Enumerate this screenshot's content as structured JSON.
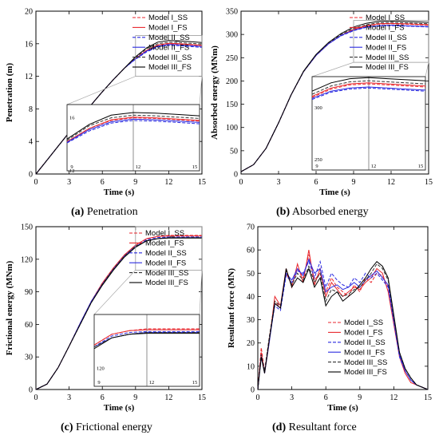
{
  "legend_labels": [
    "Model I_SS",
    "Model I_FS",
    "Model II_SS",
    "Model II_FS",
    "Model III_SS",
    "Model III_FS"
  ],
  "series_styles": [
    {
      "color": "#e8262c",
      "dash": true
    },
    {
      "color": "#e8262c",
      "dash": false
    },
    {
      "color": "#2a2ae0",
      "dash": true
    },
    {
      "color": "#2a2ae0",
      "dash": false
    },
    {
      "color": "#333333",
      "dash": true
    },
    {
      "color": "#000000",
      "dash": false
    }
  ],
  "captions": [
    {
      "letter": "(a)",
      "text": " Penetration"
    },
    {
      "letter": "(b)",
      "text": " Absorbed energy"
    },
    {
      "letter": "(c)",
      "text": " Frictional energy"
    },
    {
      "letter": "(d)",
      "text": " Resultant force"
    }
  ],
  "chart_data": [
    {
      "type": "line",
      "xlabel": "Time (s)",
      "ylabel": "Penetration (m)",
      "xlim": [
        0,
        15
      ],
      "ylim": [
        0,
        20
      ],
      "xticks": [
        0,
        3,
        6,
        9,
        12,
        15
      ],
      "yticks": [
        0,
        4,
        8,
        12,
        16,
        20
      ],
      "legend_position": "top-right",
      "x": [
        0,
        1,
        2,
        3,
        4,
        5,
        6,
        7,
        8,
        9,
        10,
        11,
        12,
        13,
        14,
        15
      ],
      "series": [
        {
          "name": "Model I_SS",
          "values": [
            0,
            1.7,
            3.4,
            5.1,
            6.8,
            8.5,
            10.1,
            11.6,
            13.0,
            14.2,
            15.2,
            15.8,
            16.0,
            15.95,
            15.85,
            15.75
          ]
        },
        {
          "name": "Model I_FS",
          "values": [
            0,
            1.7,
            3.4,
            5.1,
            6.8,
            8.5,
            10.1,
            11.6,
            13.0,
            14.2,
            15.2,
            15.85,
            16.05,
            16.0,
            15.9,
            15.8
          ]
        },
        {
          "name": "Model II_SS",
          "values": [
            0,
            1.7,
            3.4,
            5.1,
            6.8,
            8.5,
            10.1,
            11.6,
            13.0,
            14.1,
            15.0,
            15.6,
            15.8,
            15.75,
            15.65,
            15.55
          ]
        },
        {
          "name": "Model II_FS",
          "values": [
            0,
            1.7,
            3.4,
            5.1,
            6.8,
            8.5,
            10.1,
            11.6,
            13.0,
            14.15,
            15.1,
            15.7,
            15.9,
            15.85,
            15.75,
            15.65
          ]
        },
        {
          "name": "Model III_SS",
          "values": [
            0,
            1.7,
            3.4,
            5.1,
            6.8,
            8.5,
            10.1,
            11.6,
            13.0,
            14.3,
            15.4,
            16.0,
            16.2,
            16.15,
            16.05,
            15.95
          ]
        },
        {
          "name": "Model III_FS",
          "values": [
            0,
            1.7,
            3.4,
            5.1,
            6.8,
            8.5,
            10.1,
            11.6,
            13.0,
            14.4,
            15.5,
            16.2,
            16.4,
            16.35,
            16.25,
            16.15
          ]
        }
      ],
      "inset": {
        "xlim": [
          9,
          15
        ],
        "ylim": [
          12,
          17
        ],
        "xticks": [
          9,
          12,
          15
        ],
        "ytick_labels": [
          "12",
          "16"
        ]
      }
    },
    {
      "type": "line",
      "xlabel": "Time (s)",
      "ylabel": "Absorbed energy (MNm)",
      "xlim": [
        0,
        15
      ],
      "ylim": [
        0,
        350
      ],
      "xticks": [
        0,
        3,
        6,
        9,
        12,
        15
      ],
      "yticks": [
        0,
        50,
        100,
        150,
        200,
        250,
        300,
        350
      ],
      "legend_position": "top-right",
      "x": [
        0,
        1,
        2,
        3,
        4,
        5,
        6,
        7,
        8,
        9,
        10,
        11,
        12,
        13,
        14,
        15
      ],
      "series": [
        {
          "name": "Model I_SS",
          "values": [
            5,
            20,
            55,
            110,
            170,
            220,
            255,
            280,
            298,
            310,
            318,
            322,
            323,
            322,
            321,
            320
          ]
        },
        {
          "name": "Model I_FS",
          "values": [
            5,
            20,
            55,
            110,
            170,
            220,
            255,
            280,
            298,
            311,
            319,
            323,
            324,
            323,
            322,
            321
          ]
        },
        {
          "name": "Model II_SS",
          "values": [
            5,
            20,
            55,
            110,
            170,
            220,
            255,
            280,
            297,
            308,
            315,
            318,
            319,
            318,
            317,
            316
          ]
        },
        {
          "name": "Model II_FS",
          "values": [
            5,
            20,
            55,
            110,
            170,
            220,
            255,
            280,
            298,
            309,
            316,
            319,
            320,
            319,
            318,
            317
          ]
        },
        {
          "name": "Model III_SS",
          "values": [
            5,
            20,
            55,
            110,
            170,
            220,
            256,
            282,
            300,
            313,
            321,
            325,
            326,
            325,
            324,
            323
          ]
        },
        {
          "name": "Model III_FS",
          "values": [
            5,
            20,
            55,
            110,
            170,
            221,
            257,
            283,
            302,
            316,
            324,
            328,
            329,
            328,
            327,
            326
          ]
        }
      ],
      "inset": {
        "xlim": [
          9,
          15
        ],
        "ylim": [
          240,
          330
        ],
        "xticks": [
          9,
          12,
          15
        ],
        "ytick_labels": [
          "250",
          "300"
        ]
      }
    },
    {
      "type": "line",
      "xlabel": "Time (s)",
      "ylabel": "Frictional energy (MNm)",
      "xlim": [
        0,
        15
      ],
      "ylim": [
        0,
        150
      ],
      "xticks": [
        0,
        3,
        6,
        9,
        12,
        15
      ],
      "yticks": [
        0,
        30,
        60,
        90,
        120,
        150
      ],
      "legend_position": "top-right",
      "x": [
        0,
        1,
        2,
        3,
        4,
        5,
        6,
        7,
        8,
        9,
        10,
        11,
        12,
        13,
        14,
        15
      ],
      "series": [
        {
          "name": "Model I_SS",
          "values": [
            0,
            5,
            20,
            40,
            61,
            81,
            98,
            112,
            124,
            133,
            139,
            141,
            142,
            142,
            142,
            142
          ]
        },
        {
          "name": "Model I_FS",
          "values": [
            0,
            5,
            20,
            40,
            61,
            81,
            98,
            112,
            124,
            133,
            139,
            141,
            141.5,
            141.5,
            141.5,
            141.5
          ]
        },
        {
          "name": "Model II_SS",
          "values": [
            0,
            5,
            20,
            40,
            61,
            81,
            97,
            111,
            123,
            132,
            138,
            140,
            140.5,
            140.5,
            140.5,
            140.5
          ]
        },
        {
          "name": "Model II_FS",
          "values": [
            0,
            5,
            20,
            40,
            61,
            81,
            97,
            111,
            123,
            132,
            137,
            139,
            140,
            140,
            140,
            140
          ]
        },
        {
          "name": "Model III_SS",
          "values": [
            0,
            5,
            20,
            40,
            60,
            80,
            97,
            111,
            123,
            132,
            137,
            139,
            140,
            140,
            140,
            140
          ]
        },
        {
          "name": "Model III_FS",
          "values": [
            0,
            5,
            20,
            40,
            60,
            80,
            96,
            110,
            122,
            131,
            137,
            139,
            139.5,
            139.5,
            139.5,
            139.5
          ]
        }
      ],
      "inset": {
        "xlim": [
          9,
          15
        ],
        "ylim": [
          110,
          150
        ],
        "xticks": [
          9,
          12,
          15
        ],
        "ytick_labels": [
          "120"
        ]
      }
    },
    {
      "type": "line",
      "xlabel": "Time (s)",
      "ylabel": "Resultant force (MN)",
      "xlim": [
        0,
        15
      ],
      "ylim": [
        0,
        70
      ],
      "xticks": [
        0,
        3,
        6,
        9,
        12,
        15
      ],
      "yticks": [
        0,
        10,
        20,
        30,
        40,
        50,
        60,
        70
      ],
      "legend_position": "bottom-right",
      "x": [
        0,
        0.3,
        0.6,
        1,
        1.5,
        2,
        2.5,
        3,
        3.5,
        4,
        4.5,
        5,
        5.5,
        6,
        6.5,
        7,
        7.5,
        8,
        8.5,
        9,
        9.5,
        10,
        10.5,
        11,
        11.5,
        12,
        12.5,
        13,
        13.5,
        14,
        14.5,
        15
      ],
      "series": [
        {
          "name": "Model I_SS",
          "values": [
            0,
            18,
            8,
            22,
            38,
            35,
            50,
            45,
            52,
            48,
            58,
            47,
            50,
            42,
            48,
            44,
            42,
            40,
            45,
            42,
            48,
            46,
            50,
            49,
            44,
            30,
            15,
            8,
            4,
            2,
            1,
            0
          ]
        },
        {
          "name": "Model I_FS",
          "values": [
            0,
            16,
            7,
            20,
            40,
            36,
            52,
            44,
            54,
            46,
            60,
            45,
            52,
            40,
            46,
            43,
            40,
            42,
            44,
            43,
            46,
            48,
            52,
            50,
            42,
            28,
            14,
            7,
            3,
            2,
            1,
            0
          ]
        },
        {
          "name": "Model II_SS",
          "values": [
            0,
            15,
            8,
            21,
            36,
            34,
            49,
            46,
            51,
            50,
            55,
            48,
            55,
            44,
            50,
            47,
            45,
            44,
            48,
            46,
            50,
            48,
            50,
            47,
            44,
            29,
            14,
            8,
            4,
            2,
            1,
            0
          ]
        },
        {
          "name": "Model II_FS",
          "values": [
            0,
            14,
            7,
            20,
            37,
            35,
            50,
            47,
            52,
            49,
            56,
            50,
            52,
            42,
            44,
            45,
            43,
            44,
            46,
            44,
            47,
            49,
            51,
            48,
            45,
            30,
            15,
            8,
            4,
            2,
            1,
            0
          ]
        },
        {
          "name": "Model III_SS",
          "values": [
            0,
            15,
            8,
            22,
            38,
            36,
            51,
            45,
            50,
            47,
            53,
            46,
            50,
            38,
            43,
            42,
            40,
            41,
            43,
            44,
            47,
            50,
            54,
            52,
            47,
            31,
            16,
            9,
            5,
            2,
            1,
            0
          ]
        },
        {
          "name": "Model III_FS",
          "values": [
            0,
            14,
            7,
            21,
            37,
            35,
            52,
            44,
            48,
            46,
            52,
            44,
            48,
            36,
            40,
            42,
            38,
            40,
            42,
            45,
            48,
            52,
            55,
            53,
            48,
            32,
            16,
            9,
            5,
            2,
            1,
            0
          ]
        }
      ]
    }
  ]
}
